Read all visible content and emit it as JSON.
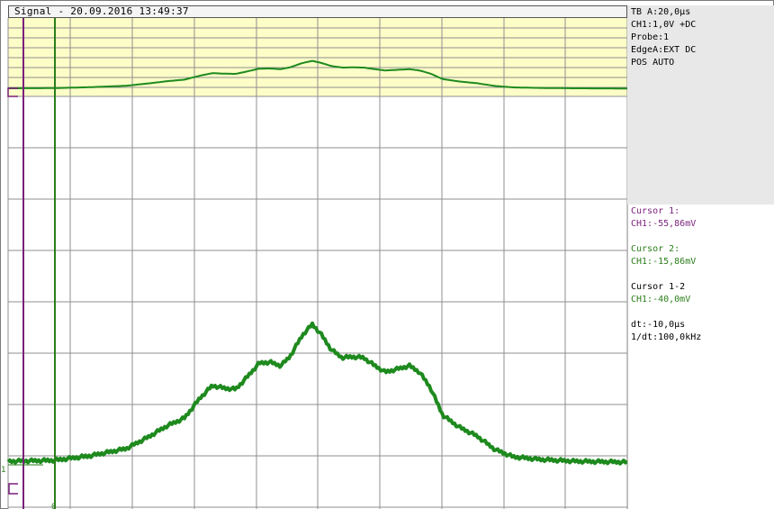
{
  "title": "Signal - 20.09.2016 13:49:37",
  "settings": {
    "timebase": "TB A:20,0µs",
    "channel": "CH1:1,0V +DC",
    "probe": "Probe:1",
    "edge": "EdgeA:EXT DC",
    "position": "POS AUTO"
  },
  "cursors": {
    "cursor1_label": "Cursor 1:",
    "cursor1_value": "CH1:-55,86mV",
    "cursor2_label": "Cursor 2:",
    "cursor2_value": "CH1:-15,86mV",
    "diff_label": "Cursor 1-2",
    "diff_value": "CH1:-40,0mV",
    "dt": "dt:-10,0µs",
    "inv_dt": "1/dt:100,0kHz"
  },
  "markers": {
    "channel_marker": "1",
    "cursor2_marker": "0"
  },
  "colors": {
    "trace": "#1e8a1e",
    "cursor1": "#7a1f7a",
    "cursor2": "#2a7d1a",
    "overview_bg": "#fdfdc8",
    "grid": "#8f8f8f"
  }
}
